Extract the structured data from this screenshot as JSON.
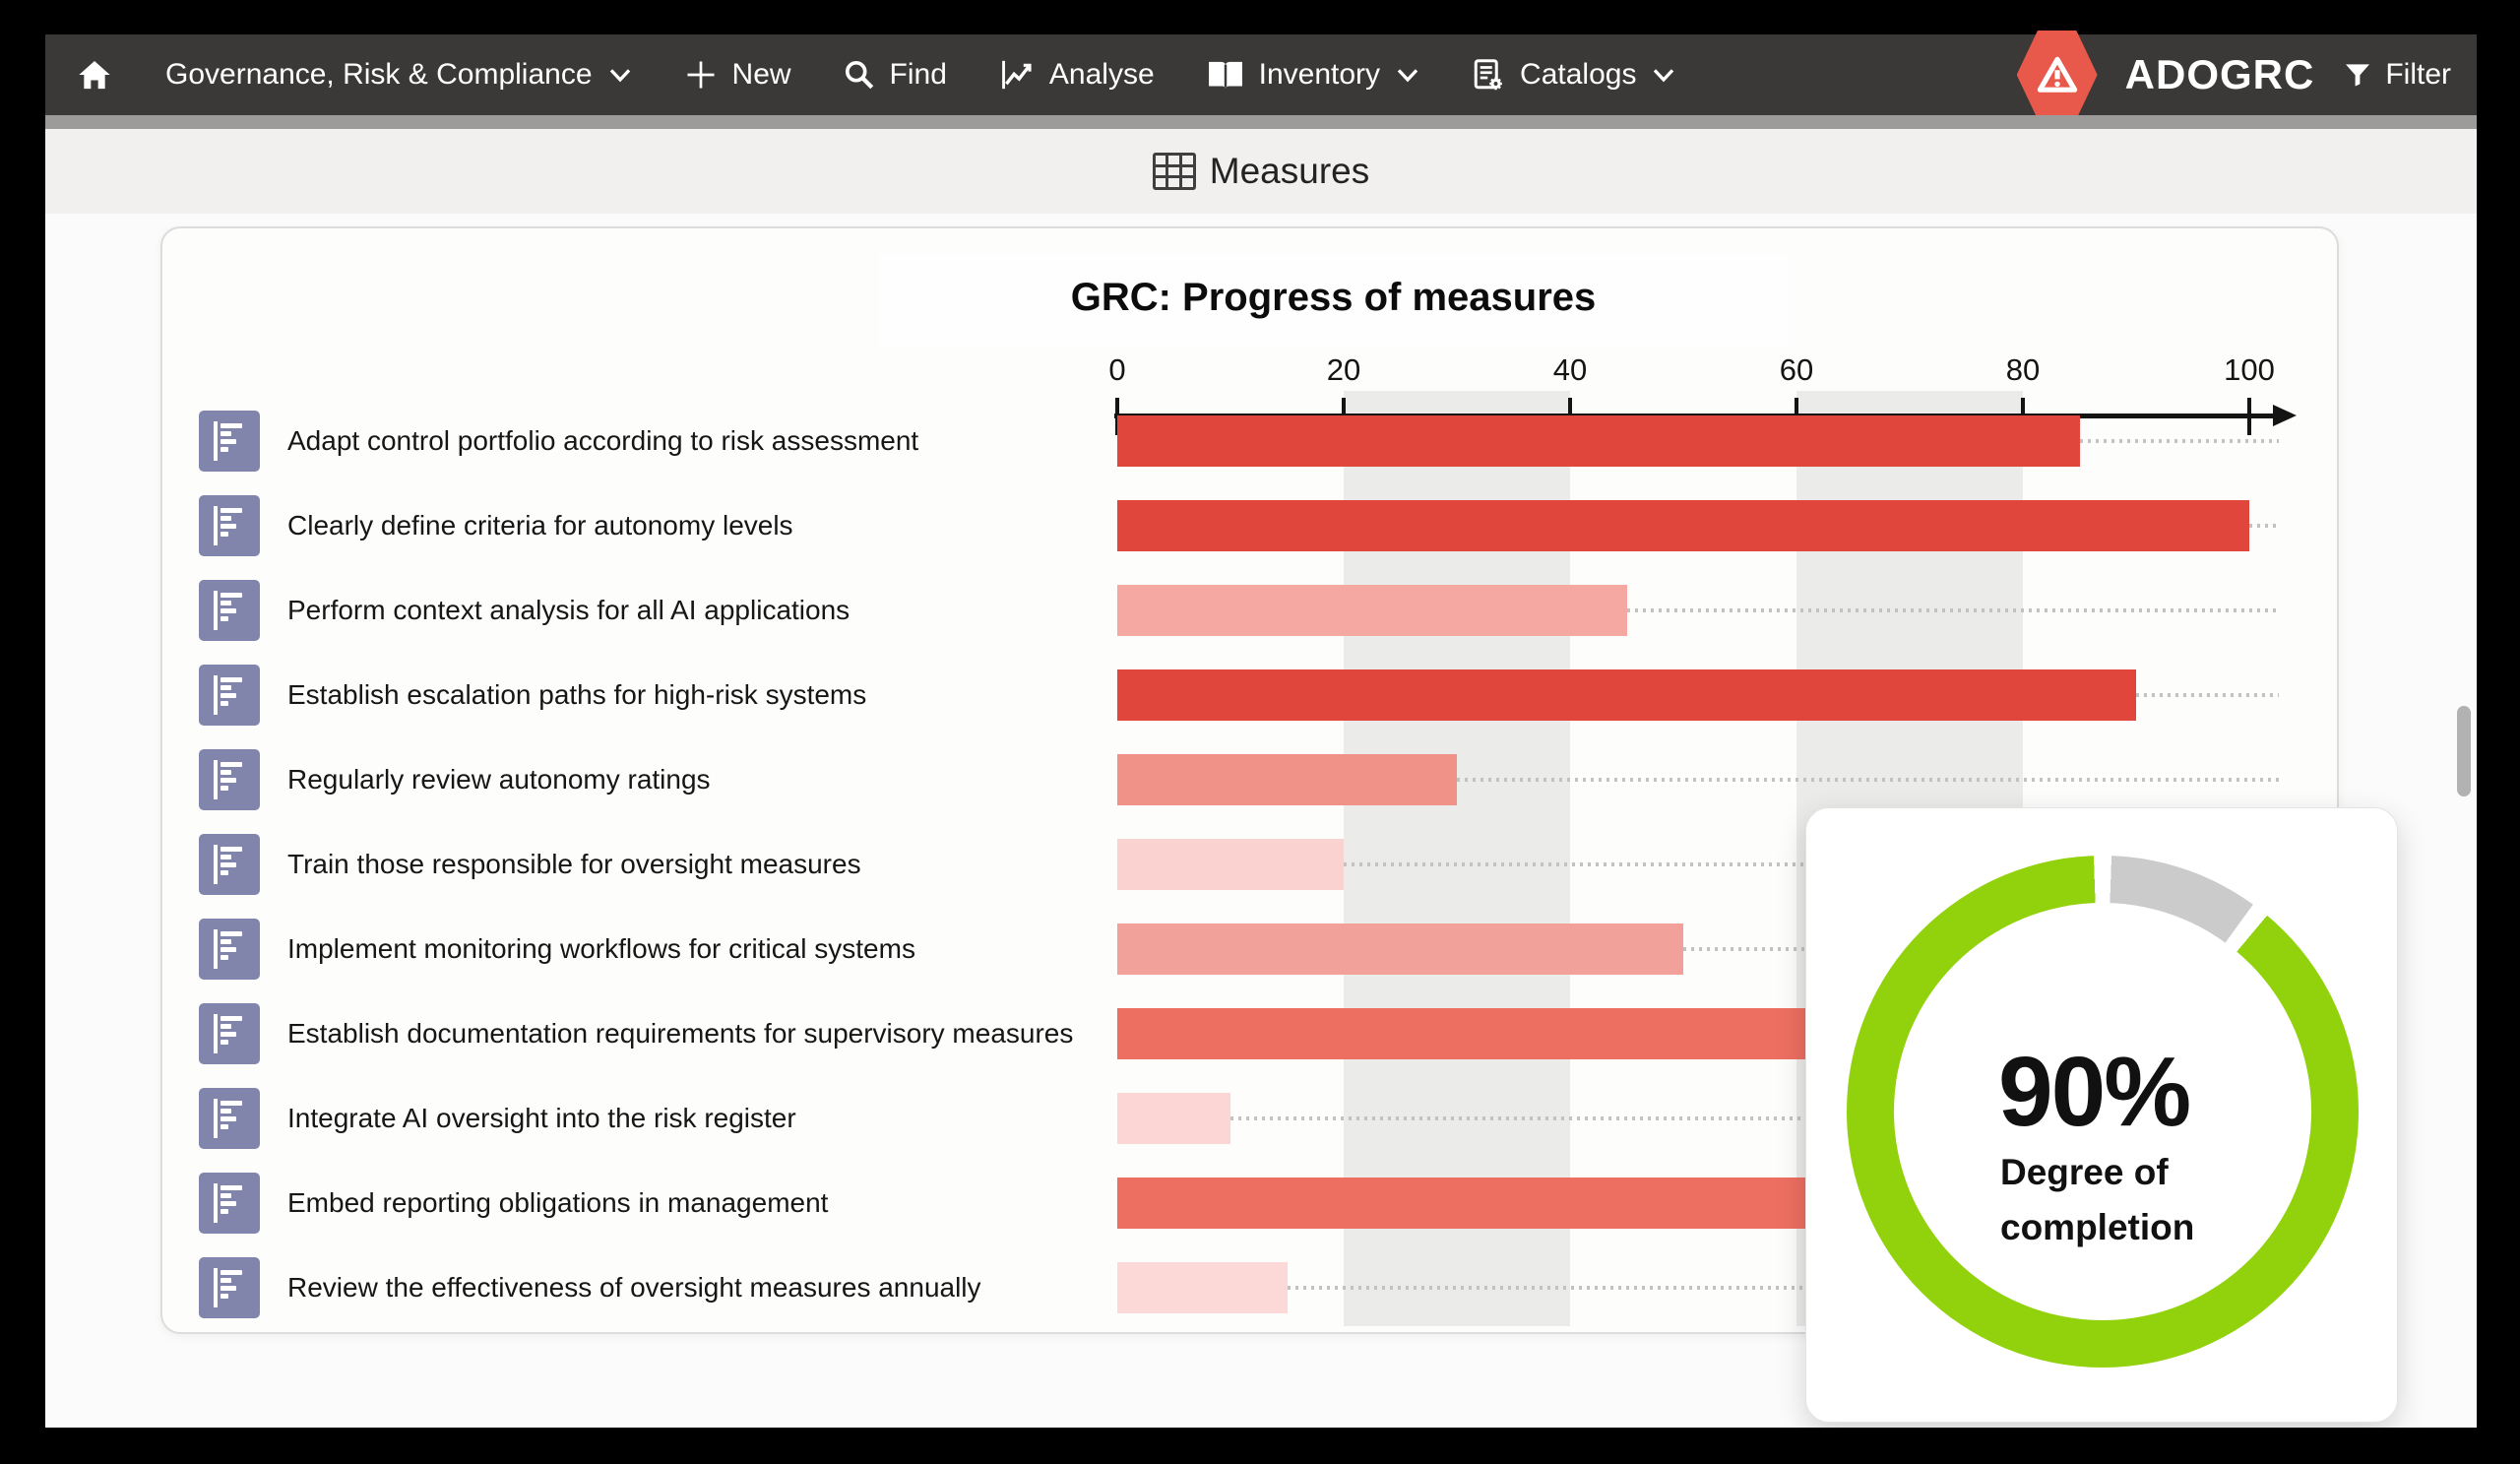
{
  "nav": {
    "items": [
      {
        "name": "home",
        "icon": "home-icon",
        "label": ""
      },
      {
        "name": "grc-module",
        "icon": null,
        "label": "Governance, Risk & Compliance",
        "chevron": true
      },
      {
        "name": "new",
        "icon": "plus-icon",
        "label": "New"
      },
      {
        "name": "find",
        "icon": "search-icon",
        "label": "Find"
      },
      {
        "name": "analyse",
        "icon": "analyse-icon",
        "label": "Analyse"
      },
      {
        "name": "inventory",
        "icon": "book-icon",
        "label": "Inventory",
        "chevron": true
      },
      {
        "name": "catalogs",
        "icon": "catalog-icon",
        "label": "Catalogs",
        "chevron": true
      }
    ],
    "brand": "ADOGRC",
    "brand_icon": "warning-triangle-icon",
    "filter_label": "Filter",
    "filter_icon": "filter-icon"
  },
  "header": {
    "title": "Measures",
    "icon": "table-grid-icon"
  },
  "chart_data": {
    "type": "bar",
    "orientation": "horizontal",
    "title": "GRC: Progress of measures",
    "xlabel": "",
    "ylabel": "",
    "x_axis": {
      "min": 0,
      "max": 100,
      "ticks": [
        0,
        20,
        40,
        60,
        80,
        100
      ]
    },
    "grid_bands": [
      [
        20,
        40
      ],
      [
        60,
        80
      ]
    ],
    "row_icon": "bar-chart-tile-icon",
    "rows": [
      {
        "label": "Adapt control portfolio according to risk assessment",
        "value": 85,
        "color": "#e0463c",
        "occluded": false
      },
      {
        "label": "Clearly define criteria for autonomy levels",
        "value": 100,
        "color": "#e0463c",
        "occluded": false
      },
      {
        "label": "Perform context analysis for all AI applications",
        "value": 45,
        "color": "#f4a8a1",
        "occluded": false
      },
      {
        "label": "Establish escalation paths for high-risk systems",
        "value": 90,
        "color": "#e0463c",
        "occluded": false
      },
      {
        "label": "Regularly review autonomy ratings",
        "value": 30,
        "color": "#f19289",
        "occluded": false
      },
      {
        "label": "Train those responsible for oversight measures",
        "value": 20,
        "color": "#fad3d1",
        "occluded": false
      },
      {
        "label": "Implement monitoring workflows for critical systems",
        "value": 50,
        "color": "#f2a19a",
        "occluded": false
      },
      {
        "label": "Establish documentation requirements for supervisory measures",
        "value": 61,
        "color": "#ed6f61",
        "occluded": true
      },
      {
        "label": "Integrate AI oversight into the risk register",
        "value": 10,
        "color": "#fcd6d4",
        "occluded": false
      },
      {
        "label": "Embed reporting obligations in management",
        "value": 61,
        "color": "#ed6f61",
        "occluded": true
      },
      {
        "label": "Review the effectiveness of oversight measures annually",
        "value": 15,
        "color": "#fcd9d7",
        "occluded": false
      }
    ]
  },
  "gauge": {
    "value_label": "90%",
    "percent": 90,
    "caption_line1": "Degree of",
    "caption_line2": "completion",
    "done_color": "#92d20c",
    "remaining_color": "#cbcbcb"
  },
  "colors": {
    "frame": "#000000",
    "nav_bg": "#3a3938",
    "nav_strip": "#9c9b9a",
    "header_band": "#f1f0ef",
    "page_bg": "#fcfbfb",
    "card_bg": "#fdfdfc",
    "grid_band": "#ebebe9",
    "axis": "#141414",
    "tile": "#8185ac",
    "brand_red": "#e8594b",
    "strong_bar_red": "#e0463c",
    "scrollbar": "#b2b2b2"
  }
}
